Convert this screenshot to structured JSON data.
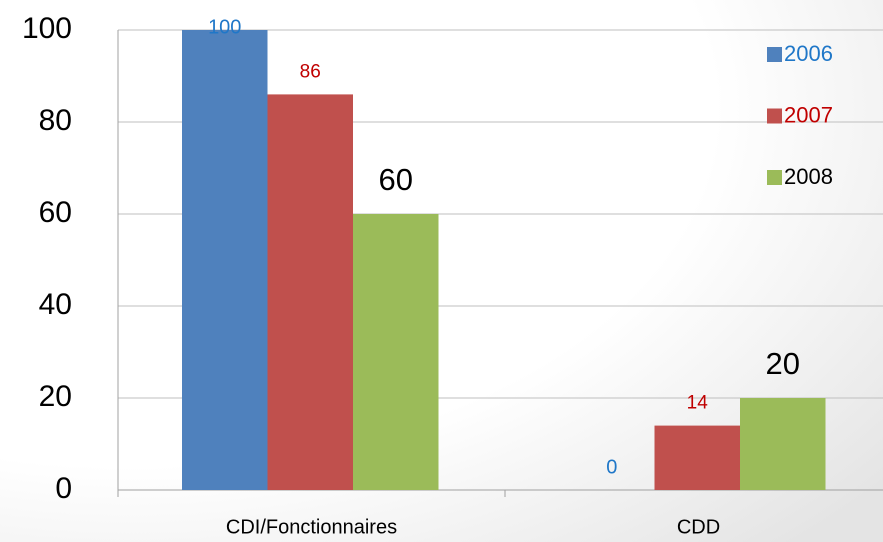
{
  "chart_data": {
    "type": "bar",
    "categories": [
      "CDI/Fonctionnaires",
      "CDD"
    ],
    "series": [
      {
        "name": "2006",
        "color": "#4f81bd",
        "values": [
          100,
          0
        ]
      },
      {
        "name": "2007",
        "color": "#c0504d",
        "values": [
          86,
          14
        ]
      },
      {
        "name": "2008",
        "color": "#9bbb59",
        "values": [
          60,
          20
        ]
      }
    ],
    "ylim": [
      0,
      100
    ],
    "yticks": [
      0,
      20,
      40,
      60,
      80,
      100
    ],
    "grid": true,
    "legend": "top-right"
  }
}
